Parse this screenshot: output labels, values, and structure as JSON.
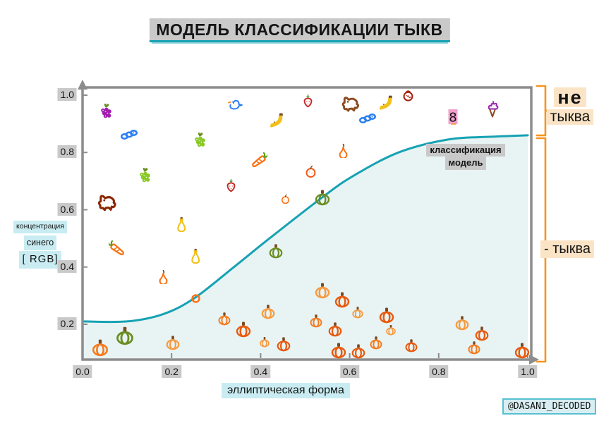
{
  "title": "МОДЕЛЬ КЛАССИФИКАЦИИ ТЫКВ",
  "credit": "@DASANI_DECODED",
  "annotations": {
    "not_pumpkin_line1": "не",
    "not_pumpkin_line2": "тыква",
    "pumpkin": "- тыква",
    "model_label_line1": "классификация",
    "model_label_line2": "модель"
  },
  "axes": {
    "x_label": "эллиптическая форма",
    "y_label_lines": [
      "концентрация",
      "синего",
      "[ RGB]"
    ],
    "x_tick_labels": [
      "0.0",
      "0.2",
      "0.4",
      "0.6",
      "0.8",
      "1.0"
    ],
    "y_tick_labels": [
      "1.0",
      "0.8",
      "0.6",
      "0.4",
      "0.2"
    ]
  },
  "colors": {
    "curve": "#16a2b3",
    "curve_fill": "#e8f3f4",
    "bracket": "#f7941d",
    "hl_gray": "#c9c9c9",
    "hl_cyan": "#c9ecf2",
    "hl_peach": "#fbe4c6",
    "hl_pink": "#f2a0ce",
    "axis": "#8c8c8c",
    "text": "#141414",
    "credit_border": "#56c0d2",
    "credit_bg": "#d8eef2"
  },
  "chart_data": {
    "type": "scatter",
    "title": "МОДЕЛЬ КЛАССИФИКАЦИИ ТЫКВ",
    "xlabel": "эллиптическая форма",
    "ylabel": "концентрация синего [RGB]",
    "xlim": [
      0,
      1
    ],
    "ylim": [
      0,
      1.05
    ],
    "x_ticks": [
      0,
      0.2,
      0.4,
      0.6,
      0.8,
      1.0
    ],
    "y_ticks": [
      1.0,
      0.8,
      0.6,
      0.4,
      0.2
    ],
    "grid": false,
    "legend": "none",
    "curve": {
      "name": "классификация модель",
      "points": [
        [
          0,
          0.21
        ],
        [
          0.1,
          0.21
        ],
        [
          0.18,
          0.235
        ],
        [
          0.25,
          0.29
        ],
        [
          0.34,
          0.4
        ],
        [
          0.42,
          0.5
        ],
        [
          0.54,
          0.645
        ],
        [
          0.61,
          0.72
        ],
        [
          0.71,
          0.8
        ],
        [
          0.82,
          0.845
        ],
        [
          0.92,
          0.855
        ],
        [
          1.0,
          0.86
        ]
      ]
    },
    "points": [
      {
        "type": "grapes",
        "color": "#a21caf",
        "x": 0.052,
        "y": 0.94
      },
      {
        "type": "caterpillar",
        "color": "#2d7ff0",
        "x": 0.105,
        "y": 0.865
      },
      {
        "type": "grapes",
        "color": "#8ac926",
        "x": 0.263,
        "y": 0.84
      },
      {
        "type": "grapes",
        "color": "#8ac926",
        "x": 0.139,
        "y": 0.717
      },
      {
        "type": "dog",
        "color": "#8b2703",
        "x": 0.055,
        "y": 0.626,
        "s": 34
      },
      {
        "type": "duck",
        "color": "#2d7ff0",
        "x": 0.342,
        "y": 0.971
      },
      {
        "type": "strawberry",
        "color": "#c62828",
        "x": 0.507,
        "y": 0.98
      },
      {
        "type": "dog",
        "color": "#8d4a1f",
        "x": 0.602,
        "y": 0.971,
        "s": 32
      },
      {
        "type": "banana",
        "color": "#f2c017",
        "x": 0.68,
        "y": 0.971
      },
      {
        "type": "tomato-doodle",
        "color": "#a52714",
        "x": 0.731,
        "y": 0.998
      },
      {
        "type": "banana",
        "color": "#f2c017",
        "x": 0.434,
        "y": 0.909
      },
      {
        "type": "caterpillar",
        "color": "#2d7ff0",
        "x": 0.64,
        "y": 0.922
      },
      {
        "type": "pear",
        "color": "#f97316",
        "x": 0.585,
        "y": 0.808
      },
      {
        "type": "carrot",
        "color": "#f97316",
        "x": 0.396,
        "y": 0.774
      },
      {
        "type": "orange-fruit",
        "color": "#f25c19",
        "x": 0.512,
        "y": 0.734,
        "s": 19
      },
      {
        "type": "strawberry",
        "color": "#c62828",
        "x": 0.333,
        "y": 0.685
      },
      {
        "type": "orange-fruit",
        "color": "#f97316",
        "x": 0.456,
        "y": 0.638,
        "s": 15
      },
      {
        "type": "pumpkin",
        "color": "#6b8e23",
        "x": 0.539,
        "y": 0.643,
        "s": 24
      },
      {
        "type": "carrot",
        "color": "#f97316",
        "x": 0.078,
        "y": 0.466,
        "flip": true
      },
      {
        "type": "squash",
        "color": "#f2c017",
        "x": 0.222,
        "y": 0.55
      },
      {
        "type": "squash",
        "color": "#f2c017",
        "x": 0.254,
        "y": 0.439
      },
      {
        "type": "pear",
        "color": "#f97316",
        "x": 0.182,
        "y": 0.367
      },
      {
        "type": "donut",
        "color": "#f97316",
        "x": 0.254,
        "y": 0.289,
        "s": 17
      },
      {
        "type": "figure8",
        "color": "#111111",
        "x": 0.834,
        "y": 0.924,
        "s": 24
      },
      {
        "type": "icecream",
        "color": "#9c27b0",
        "x": 0.921,
        "y": 0.951
      },
      {
        "type": "pumpkin",
        "color": "#6b8e23",
        "x": 0.434,
        "y": 0.456,
        "s": 22
      },
      {
        "type": "pumpkin",
        "color": "#f47c20",
        "x": 0.04,
        "y": 0.119
      },
      {
        "type": "pumpkin",
        "color": "#6b8e23",
        "x": 0.095,
        "y": 0.161,
        "s": 28
      },
      {
        "type": "pumpkin",
        "color": "#f79a3e",
        "x": 0.203,
        "y": 0.136,
        "s": 22
      },
      {
        "type": "pumpkin",
        "color": "#f47c20",
        "x": 0.319,
        "y": 0.22,
        "s": 20
      },
      {
        "type": "pumpkin",
        "color": "#e8590c",
        "x": 0.361,
        "y": 0.183,
        "s": 24
      },
      {
        "type": "pumpkin",
        "color": "#f79a3e",
        "x": 0.417,
        "y": 0.244,
        "s": 22
      },
      {
        "type": "pumpkin",
        "color": "#f79a3e",
        "x": 0.409,
        "y": 0.138,
        "s": 16
      },
      {
        "type": "pumpkin",
        "color": "#e8590c",
        "x": 0.452,
        "y": 0.131,
        "s": 22
      },
      {
        "type": "pumpkin",
        "color": "#f47c20",
        "x": 0.525,
        "y": 0.212,
        "s": 20
      },
      {
        "type": "pumpkin",
        "color": "#f79a3e",
        "x": 0.539,
        "y": 0.318,
        "s": 24
      },
      {
        "type": "pumpkin",
        "color": "#e8590c",
        "x": 0.567,
        "y": 0.183,
        "s": 22
      },
      {
        "type": "pumpkin",
        "color": "#e8590c",
        "x": 0.575,
        "y": 0.109,
        "s": 24
      },
      {
        "type": "pumpkin",
        "color": "#e8590c",
        "x": 0.583,
        "y": 0.286,
        "s": 24
      },
      {
        "type": "pumpkin",
        "color": "#f79a3e",
        "x": 0.618,
        "y": 0.242,
        "s": 18
      },
      {
        "type": "pumpkin",
        "color": "#e8590c",
        "x": 0.62,
        "y": 0.106,
        "s": 22
      },
      {
        "type": "pumpkin",
        "color": "#f47c20",
        "x": 0.659,
        "y": 0.136,
        "s": 20
      },
      {
        "type": "pumpkin",
        "color": "#e8590c",
        "x": 0.683,
        "y": 0.232,
        "s": 24
      },
      {
        "type": "pumpkin",
        "color": "#f79a3e",
        "x": 0.693,
        "y": 0.18,
        "s": 16
      },
      {
        "type": "pumpkin",
        "color": "#e8590c",
        "x": 0.739,
        "y": 0.126,
        "s": 20
      },
      {
        "type": "pumpkin",
        "color": "#f79a3e",
        "x": 0.853,
        "y": 0.205,
        "s": 22
      },
      {
        "type": "pumpkin",
        "color": "#e8590c",
        "x": 0.897,
        "y": 0.168,
        "s": 22
      },
      {
        "type": "pumpkin",
        "color": "#f47c20",
        "x": 0.88,
        "y": 0.119,
        "s": 20
      },
      {
        "type": "pumpkin",
        "color": "#e8590c",
        "x": 0.987,
        "y": 0.109,
        "s": 24
      }
    ]
  }
}
